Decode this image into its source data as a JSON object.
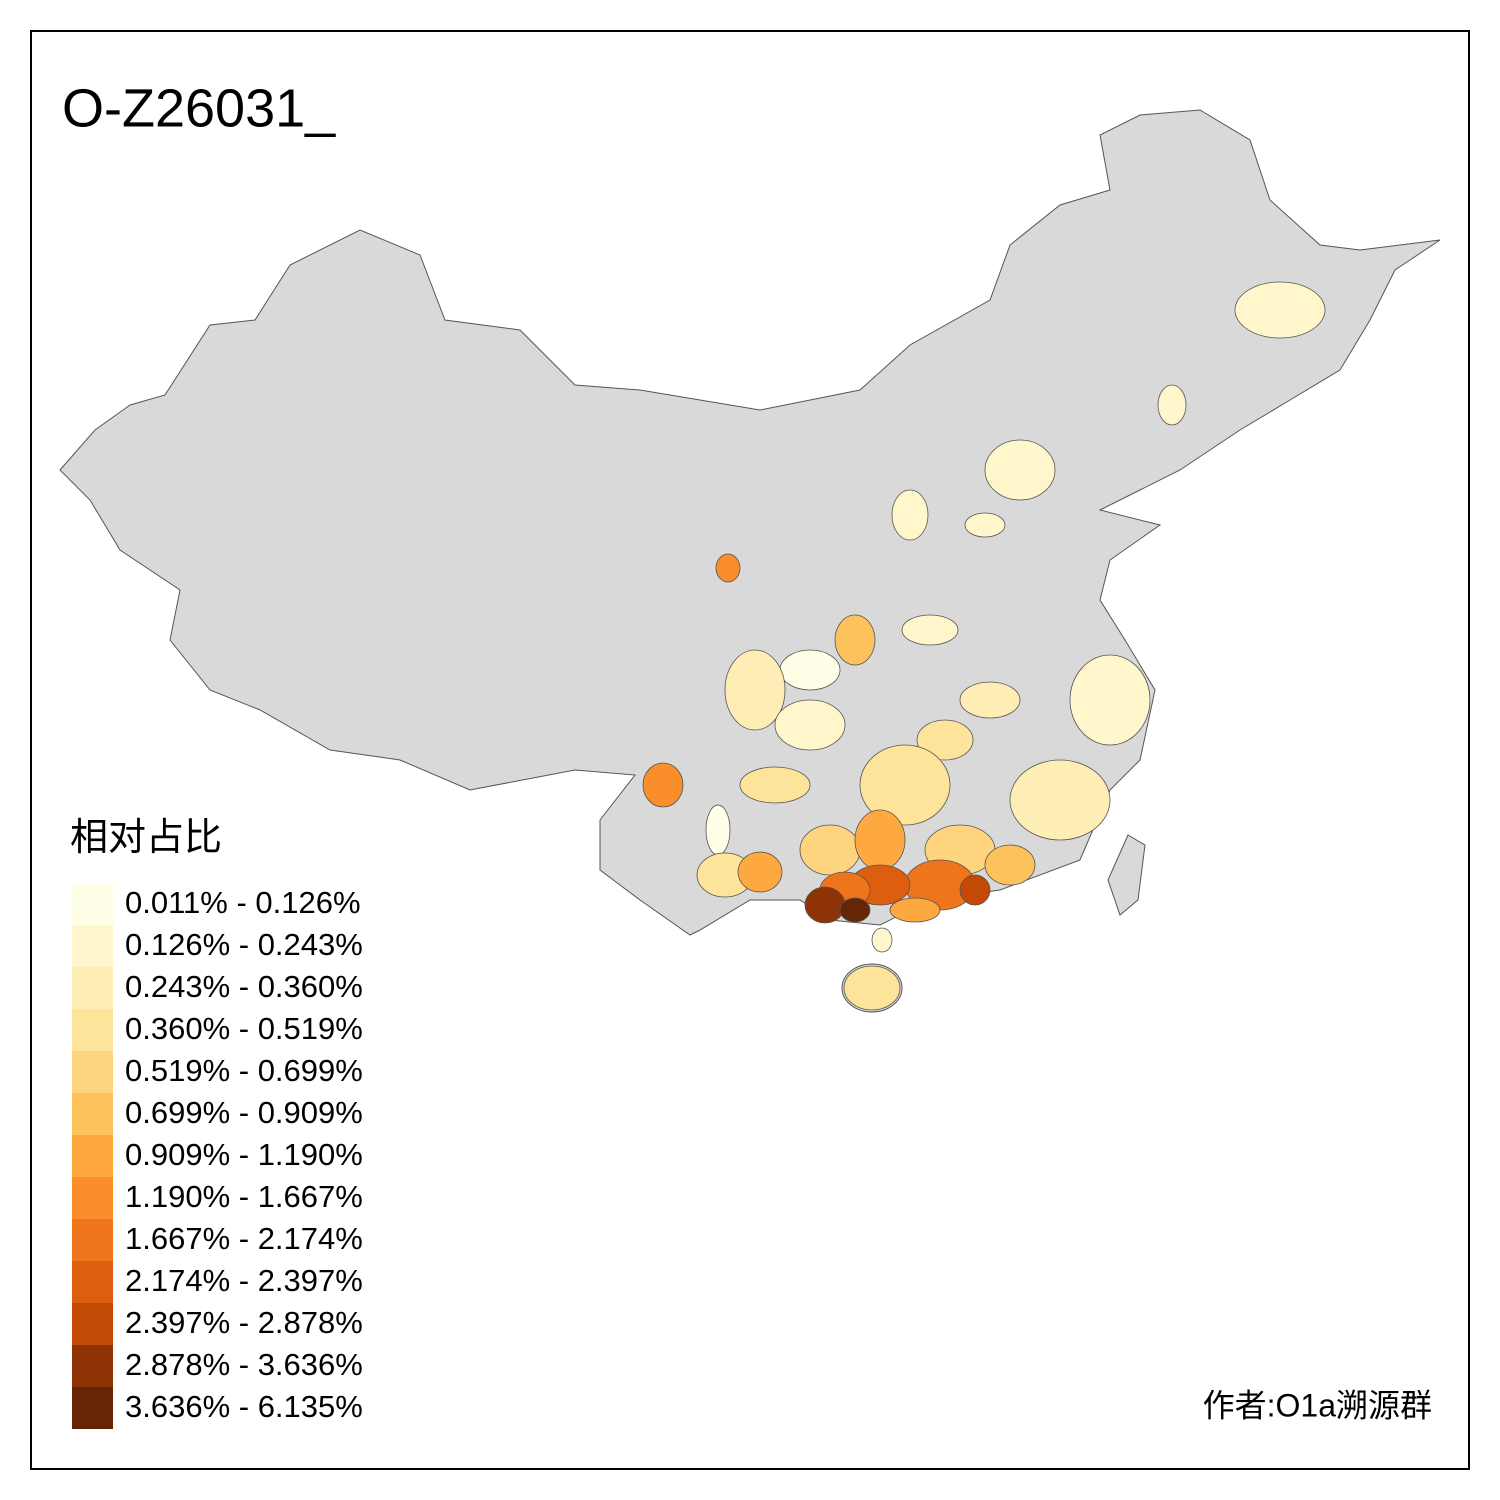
{
  "title": "O-Z26031_",
  "legend": {
    "title": "相对占比",
    "items": [
      {
        "label": "0.011% - 0.126%",
        "color": "#FFFEE6"
      },
      {
        "label": "0.126% - 0.243%",
        "color": "#FFF6CC"
      },
      {
        "label": "0.243% - 0.360%",
        "color": "#FEEDB4"
      },
      {
        "label": "0.360% - 0.519%",
        "color": "#FEE39A"
      },
      {
        "label": "0.519% - 0.699%",
        "color": "#FED57E"
      },
      {
        "label": "0.699% - 0.909%",
        "color": "#FEC25C"
      },
      {
        "label": "0.909% - 1.190%",
        "color": "#FEA93F"
      },
      {
        "label": "1.190% - 1.667%",
        "color": "#F98E2B"
      },
      {
        "label": "1.667% - 2.174%",
        "color": "#EE751C"
      },
      {
        "label": "2.174% - 2.397%",
        "color": "#DC5E0E"
      },
      {
        "label": "2.397% - 2.878%",
        "color": "#C24A04"
      },
      {
        "label": "2.878% - 3.636%",
        "color": "#8E3305"
      },
      {
        "label": "3.636% - 6.135%",
        "color": "#662506"
      }
    ]
  },
  "author": "作者:O1a溯源群"
}
